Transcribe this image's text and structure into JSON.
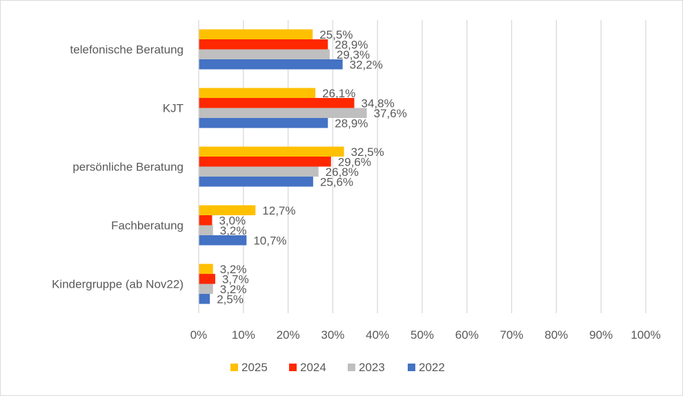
{
  "chart_data": {
    "type": "bar",
    "orientation": "horizontal",
    "categories": [
      "telefonische Beratung",
      "KJT",
      "persönliche Beratung",
      "Fachberatung",
      "Kindergruppe (ab Nov22)"
    ],
    "series": [
      {
        "name": "2025",
        "color": "#FFC000",
        "values": [
          25.5,
          26.1,
          32.5,
          12.7,
          3.2
        ],
        "labels": [
          "25,5%",
          "26,1%",
          "32,5%",
          "12,7%",
          "3,2%"
        ]
      },
      {
        "name": "2024",
        "color": "#FF2800",
        "values": [
          28.9,
          34.8,
          29.6,
          3.0,
          3.7
        ],
        "labels": [
          "28,9%",
          "34,8%",
          "29,6%",
          "3,0%",
          "3,7%"
        ]
      },
      {
        "name": "2023",
        "color": "#BFBFBF",
        "values": [
          29.3,
          37.6,
          26.8,
          3.2,
          3.2
        ],
        "labels": [
          "29,3%",
          "37,6%",
          "26,8%",
          "3,2%",
          "3,2%"
        ]
      },
      {
        "name": "2022",
        "color": "#4472C4",
        "values": [
          32.2,
          28.9,
          25.6,
          10.7,
          2.5
        ],
        "labels": [
          "32,2%",
          "28,9%",
          "25,6%",
          "10,7%",
          "2,5%"
        ]
      }
    ],
    "xlim": [
      0,
      100
    ],
    "xticks": [
      "0%",
      "10%",
      "20%",
      "30%",
      "40%",
      "50%",
      "60%",
      "70%",
      "80%",
      "90%",
      "100%"
    ],
    "grid": true,
    "legend": "bottom",
    "title": "",
    "xlabel": "",
    "ylabel": ""
  }
}
